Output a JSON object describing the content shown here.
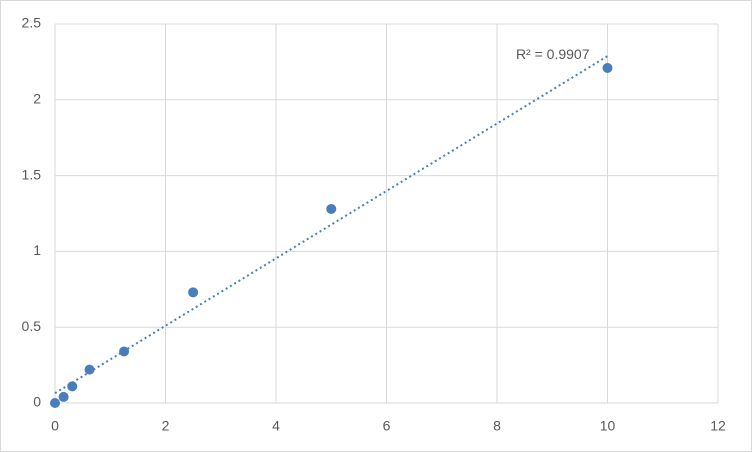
{
  "chart_data": {
    "type": "scatter",
    "x": [
      0,
      0.156,
      0.3125,
      0.625,
      1.25,
      2.5,
      5,
      10
    ],
    "values": [
      0,
      0.04,
      0.11,
      0.22,
      0.34,
      0.73,
      1.28,
      2.21
    ],
    "color": "#4a7ebb",
    "trendline": "linear",
    "annotation": "R² = 0.9907",
    "xlim": [
      0,
      12
    ],
    "xticks": [
      0,
      2,
      4,
      6,
      8,
      10,
      12
    ],
    "ylim": [
      0,
      2.5
    ],
    "yticks": [
      0,
      0.5,
      1,
      1.5,
      2,
      2.5
    ],
    "grid": true
  }
}
